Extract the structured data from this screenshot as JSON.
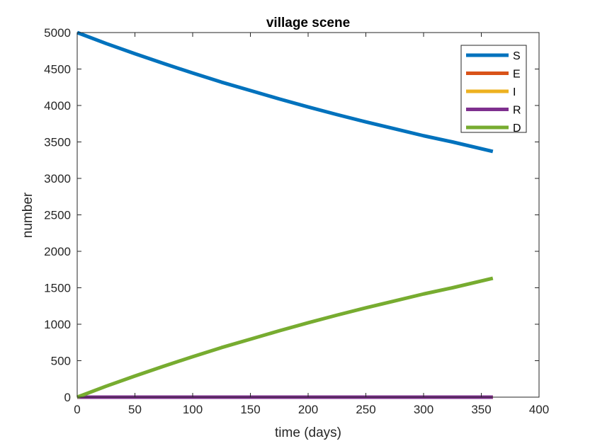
{
  "chart_data": {
    "type": "line",
    "title": "village scene",
    "xlabel": "time (days)",
    "ylabel": "number",
    "xlim": [
      0,
      400
    ],
    "ylim": [
      0,
      5000
    ],
    "x_ticks": [
      0,
      50,
      100,
      150,
      200,
      250,
      300,
      350,
      400
    ],
    "y_ticks": [
      0,
      500,
      1000,
      1500,
      2000,
      2500,
      3000,
      3500,
      4000,
      4500,
      5000
    ],
    "grid": false,
    "legend_position": "top-right",
    "x": [
      0,
      25,
      50,
      75,
      100,
      125,
      150,
      175,
      200,
      225,
      250,
      275,
      300,
      325,
      360
    ],
    "series": [
      {
        "name": "S",
        "color": "#0072BD",
        "values": [
          5000,
          4850,
          4710,
          4575,
          4445,
          4320,
          4205,
          4090,
          3980,
          3875,
          3775,
          3680,
          3585,
          3500,
          3370
        ]
      },
      {
        "name": "E",
        "color": "#D95319",
        "values": [
          0,
          0,
          0,
          0,
          0,
          0,
          0,
          0,
          0,
          0,
          0,
          0,
          0,
          0,
          0
        ]
      },
      {
        "name": "I",
        "color": "#EDB120",
        "values": [
          0,
          0,
          0,
          0,
          0,
          0,
          0,
          0,
          0,
          0,
          0,
          0,
          0,
          0,
          0
        ]
      },
      {
        "name": "R",
        "color": "#7E2F8E",
        "values": [
          0,
          0,
          0,
          0,
          0,
          0,
          0,
          0,
          0,
          0,
          0,
          0,
          0,
          0,
          0
        ]
      },
      {
        "name": "D",
        "color": "#77AC30",
        "values": [
          0,
          150,
          290,
          425,
          555,
          680,
          795,
          910,
          1020,
          1125,
          1225,
          1320,
          1415,
          1500,
          1630
        ]
      }
    ]
  }
}
